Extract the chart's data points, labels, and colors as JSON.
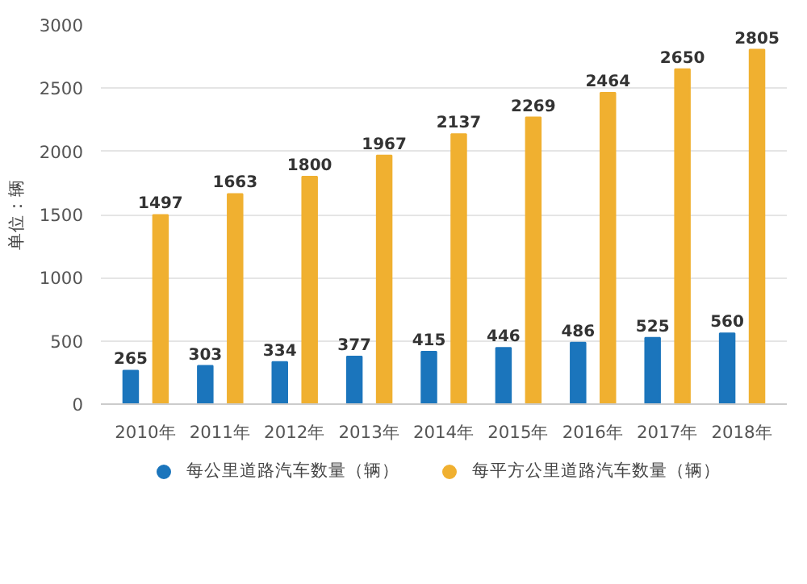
{
  "chart_data": {
    "type": "bar",
    "ylabel": "单位：辆",
    "categories": [
      "2010年",
      "2011年",
      "2012年",
      "2013年",
      "2014年",
      "2015年",
      "2016年",
      "2017年",
      "2018年"
    ],
    "series": [
      {
        "name": "每公里道路汽车数量（辆）",
        "color": "#1b75bc",
        "values": [
          265,
          303,
          334,
          377,
          415,
          446,
          486,
          525,
          560
        ]
      },
      {
        "name": "每平方公里道路汽车数量（辆）",
        "color": "#f0b030",
        "values": [
          1497,
          1663,
          1800,
          1967,
          2137,
          2269,
          2464,
          2650,
          2805
        ]
      }
    ],
    "ylim": [
      0,
      3000
    ],
    "yticks": [
      0,
      500,
      1000,
      1500,
      2000,
      2500,
      3000
    ],
    "grid": "y",
    "legend": "bottom",
    "data_labels": true
  }
}
